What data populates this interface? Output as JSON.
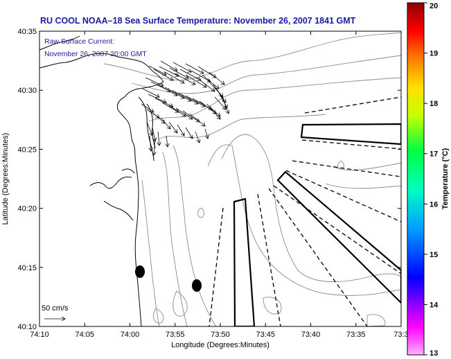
{
  "title": "RU COOL  NOAA–18  Sea Surface Temperature:  November 26, 2007 1841 GMT",
  "current_label_line1": "Raw Surface Current:",
  "current_label_line2": "November 26, 2007 20:00 GMT",
  "xlabel": "Longitude (Degrees:Minutes)",
  "ylabel": "Latitude (Degrees:Minutes)",
  "colorbar_label": "Temperature (°C)",
  "scale_label": "50 cm/s",
  "x_ticks": [
    "74:10",
    "74:05",
    "74:00",
    "73:55",
    "73:50",
    "73:45",
    "73:40",
    "73:35",
    "73:3"
  ],
  "y_ticks": [
    "40:35",
    "40:30",
    "40:25",
    "40:20",
    "40:15",
    "40:10"
  ],
  "colorbar": {
    "min": 13,
    "max": 20,
    "ticks": [
      "20",
      "19",
      "18",
      "17",
      "16",
      "15",
      "14",
      "13"
    ],
    "colors": [
      "#ff00ff",
      "#0000ff",
      "#00c8ff",
      "#00ff80",
      "#c8ff00",
      "#ffd000",
      "#ff2000",
      "#9a0000"
    ]
  },
  "colors": {
    "title": "#1a1aa6",
    "land": "#ffffff",
    "coastline": "#000000",
    "bathymetry": "#8a8a8a"
  }
}
